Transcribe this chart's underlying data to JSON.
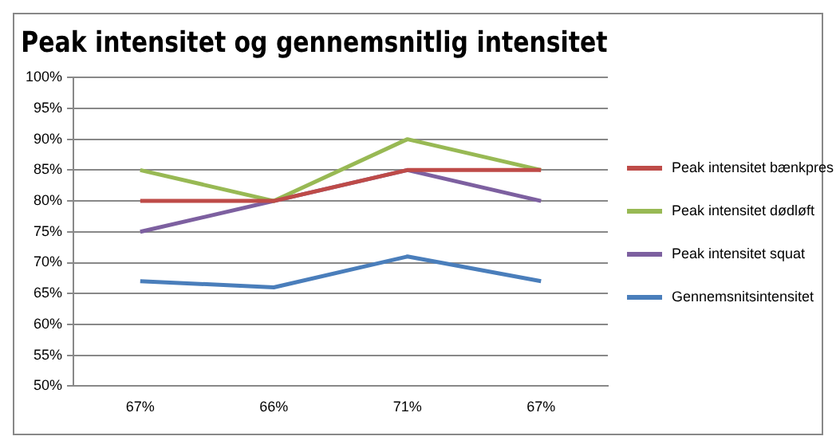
{
  "chart_data": {
    "type": "line",
    "title": "Peak intensitet og gennemsnitlig intensitet",
    "categories": [
      "67%",
      "66%",
      "71%",
      "67%"
    ],
    "series": [
      {
        "name": "Peak intensitet bænkpres",
        "color": "#be4b48",
        "values": [
          80,
          80,
          85,
          85
        ]
      },
      {
        "name": "Peak intensitet dødløft",
        "color": "#98b954",
        "values": [
          85,
          80,
          90,
          85
        ]
      },
      {
        "name": "Peak intensitet squat",
        "color": "#7d60a0",
        "values": [
          75,
          80,
          85,
          80
        ]
      },
      {
        "name": "Gennemsnitsintensitet",
        "color": "#4a7ebb",
        "values": [
          67,
          66,
          71,
          67
        ]
      }
    ],
    "ylim": [
      50,
      100
    ],
    "yticks": [
      {
        "value": 50,
        "label": "50%"
      },
      {
        "value": 55,
        "label": "55%"
      },
      {
        "value": 60,
        "label": "60%"
      },
      {
        "value": 65,
        "label": "65%"
      },
      {
        "value": 70,
        "label": "70%"
      },
      {
        "value": 75,
        "label": "75%"
      },
      {
        "value": 80,
        "label": "80%"
      },
      {
        "value": 85,
        "label": "85%"
      },
      {
        "value": 90,
        "label": "90%"
      },
      {
        "value": 95,
        "label": "95%"
      },
      {
        "value": 100,
        "label": "100%"
      }
    ],
    "grid": "y",
    "legend": "right",
    "marker": "none",
    "line_style": "solid"
  }
}
